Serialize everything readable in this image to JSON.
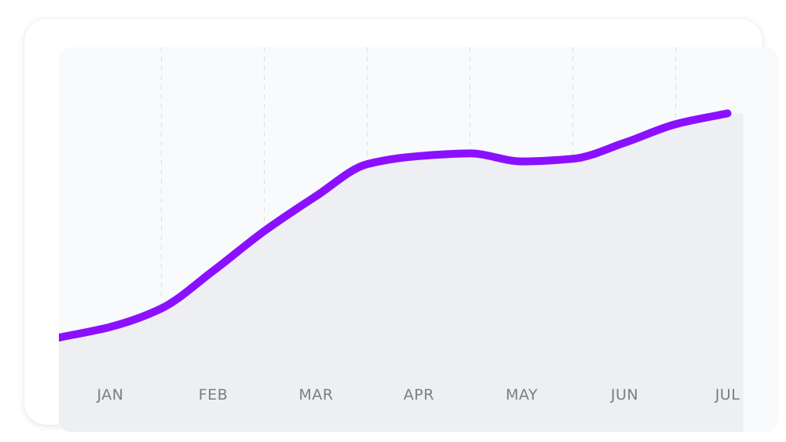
{
  "chart_data": {
    "type": "area",
    "title": "",
    "xlabel": "",
    "ylabel": "",
    "categories": [
      "JAN",
      "FEB",
      "MAR",
      "APR",
      "MAY",
      "JUN",
      "JUL"
    ],
    "x": [
      0.0,
      0.5,
      1.0,
      1.5,
      2.0,
      2.5,
      3.0,
      3.5,
      4.0,
      4.5,
      5.0,
      5.5,
      6.0,
      6.5
    ],
    "series": [
      {
        "values": [
          10.0,
          14.0,
          21.0,
          35.0,
          50.0,
          63.0,
          75.0,
          78.0,
          79.0,
          76.0,
          77.0,
          83.0,
          90.0,
          94.0
        ],
        "color": "#8b10ff"
      }
    ],
    "ylim": [
      0,
      100
    ],
    "grid": {
      "vertical": true,
      "horizontal": false,
      "style": "dashed"
    },
    "colors": {
      "line": "#8b10ff",
      "area_fill": "#eeeff2",
      "plot_background": "#f9fafc",
      "grid": "#dcdde0",
      "label": "#7b7d82"
    }
  }
}
